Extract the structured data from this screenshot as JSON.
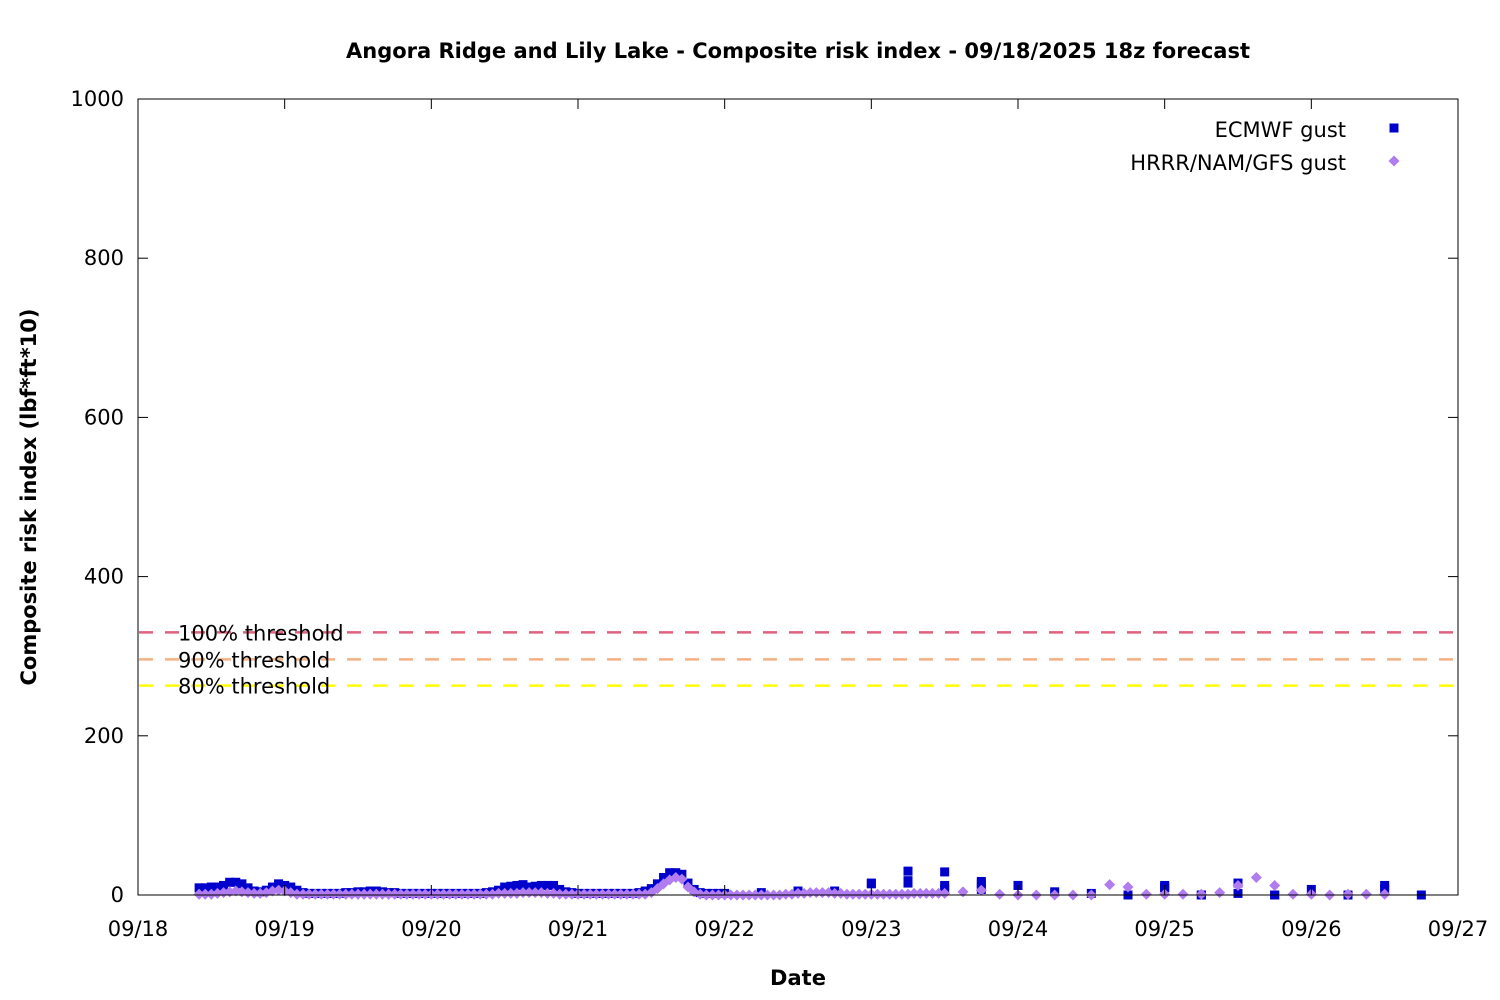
{
  "chart_data": {
    "type": "scatter",
    "title": "Angora Ridge and Lily Lake - Composite risk index - 09/18/2025 18z forecast",
    "xlabel": "Date",
    "ylabel": "Composite risk index (lbf*ft*10)",
    "x_ticks": [
      "09/18",
      "09/19",
      "09/20",
      "09/21",
      "09/22",
      "09/23",
      "09/24",
      "09/25",
      "09/26",
      "09/27"
    ],
    "xlim": [
      "09/18",
      "09/27"
    ],
    "y_ticks": [
      0,
      200,
      400,
      600,
      800,
      1000
    ],
    "ylim": [
      0,
      1000
    ],
    "grid": false,
    "legend": "top-right",
    "thresholds": [
      {
        "label": "100% threshold",
        "value": 330,
        "color": "#e0607e"
      },
      {
        "label": "90% threshold",
        "value": 296,
        "color": "#f4b183"
      },
      {
        "label": "80% threshold",
        "value": 263,
        "color": "#ffff00"
      }
    ],
    "series": [
      {
        "name": "ECMWF gust",
        "marker": "square",
        "color": "#0000cc",
        "points": [
          [
            "09/18 10:00",
            9
          ],
          [
            "09/18 11:00",
            9
          ],
          [
            "09/18 12:00",
            10
          ],
          [
            "09/18 13:00",
            10
          ],
          [
            "09/18 14:00",
            12
          ],
          [
            "09/18 15:00",
            16
          ],
          [
            "09/18 16:00",
            16
          ],
          [
            "09/18 17:00",
            14
          ],
          [
            "09/18 18:00",
            9
          ],
          [
            "09/18 19:00",
            5
          ],
          [
            "09/18 20:00",
            4
          ],
          [
            "09/18 21:00",
            6
          ],
          [
            "09/18 22:00",
            10
          ],
          [
            "09/18 23:00",
            14
          ],
          [
            "09/19 00:00",
            12
          ],
          [
            "09/19 01:00",
            10
          ],
          [
            "09/19 02:00",
            6
          ],
          [
            "09/19 03:00",
            3
          ],
          [
            "09/19 04:00",
            2
          ],
          [
            "09/19 05:00",
            2
          ],
          [
            "09/19 06:00",
            2
          ],
          [
            "09/19 07:00",
            2
          ],
          [
            "09/19 08:00",
            2
          ],
          [
            "09/19 09:00",
            2
          ],
          [
            "09/19 10:00",
            3
          ],
          [
            "09/19 11:00",
            3
          ],
          [
            "09/19 12:00",
            4
          ],
          [
            "09/19 13:00",
            4
          ],
          [
            "09/19 14:00",
            5
          ],
          [
            "09/19 15:00",
            5
          ],
          [
            "09/19 16:00",
            4
          ],
          [
            "09/19 17:00",
            3
          ],
          [
            "09/19 18:00",
            3
          ],
          [
            "09/19 19:00",
            2
          ],
          [
            "09/19 20:00",
            2
          ],
          [
            "09/19 21:00",
            2
          ],
          [
            "09/19 22:00",
            2
          ],
          [
            "09/19 23:00",
            2
          ],
          [
            "09/20 00:00",
            2
          ],
          [
            "09/20 01:00",
            2
          ],
          [
            "09/20 02:00",
            2
          ],
          [
            "09/20 03:00",
            2
          ],
          [
            "09/20 04:00",
            2
          ],
          [
            "09/20 05:00",
            2
          ],
          [
            "09/20 06:00",
            2
          ],
          [
            "09/20 07:00",
            2
          ],
          [
            "09/20 08:00",
            2
          ],
          [
            "09/20 09:00",
            3
          ],
          [
            "09/20 10:00",
            4
          ],
          [
            "09/20 11:00",
            6
          ],
          [
            "09/20 12:00",
            10
          ],
          [
            "09/20 13:00",
            11
          ],
          [
            "09/20 14:00",
            12
          ],
          [
            "09/20 15:00",
            13
          ],
          [
            "09/20 16:00",
            10
          ],
          [
            "09/20 17:00",
            11
          ],
          [
            "09/20 18:00",
            12
          ],
          [
            "09/20 19:00",
            12
          ],
          [
            "09/20 20:00",
            12
          ],
          [
            "09/20 21:00",
            7
          ],
          [
            "09/20 22:00",
            4
          ],
          [
            "09/20 23:00",
            3
          ],
          [
            "09/21 00:00",
            2
          ],
          [
            "09/21 01:00",
            2
          ],
          [
            "09/21 02:00",
            2
          ],
          [
            "09/21 03:00",
            2
          ],
          [
            "09/21 04:00",
            2
          ],
          [
            "09/21 05:00",
            2
          ],
          [
            "09/21 06:00",
            2
          ],
          [
            "09/21 07:00",
            2
          ],
          [
            "09/21 08:00",
            2
          ],
          [
            "09/21 09:00",
            2
          ],
          [
            "09/21 10:00",
            3
          ],
          [
            "09/21 11:00",
            5
          ],
          [
            "09/21 12:00",
            8
          ],
          [
            "09/21 13:00",
            14
          ],
          [
            "09/21 14:00",
            22
          ],
          [
            "09/21 15:00",
            28
          ],
          [
            "09/21 16:00",
            28
          ],
          [
            "09/21 17:00",
            26
          ],
          [
            "09/21 18:00",
            15
          ],
          [
            "09/21 19:00",
            7
          ],
          [
            "09/21 20:00",
            3
          ],
          [
            "09/21 21:00",
            2
          ],
          [
            "09/21 22:00",
            2
          ],
          [
            "09/21 23:00",
            2
          ],
          [
            "09/22 00:00",
            2
          ],
          [
            "09/22 06:00",
            3
          ],
          [
            "09/22 12:00",
            5
          ],
          [
            "09/22 18:00",
            5
          ],
          [
            "09/23 00:00",
            14
          ],
          [
            "09/23 06:00",
            30
          ],
          [
            "09/23 12:00",
            29
          ],
          [
            "09/23 18:00",
            17
          ],
          [
            "09/24 00:00",
            12
          ],
          [
            "09/23 06:00",
            15
          ],
          [
            "09/23 12:00",
            8
          ],
          [
            "09/23 18:00",
            7
          ],
          [
            "09/23 00:00",
            15
          ],
          [
            "09/23 06:00",
            18
          ],
          [
            "09/23 12:00",
            12
          ],
          [
            "09/23 18:00",
            14
          ],
          [
            "09/24 00:00",
            12
          ],
          [
            "09/24 06:00",
            4
          ],
          [
            "09/24 12:00",
            2
          ],
          [
            "09/24 18:00",
            0
          ],
          [
            "09/25 00:00",
            10
          ],
          [
            "09/25 06:00",
            0
          ],
          [
            "09/25 12:00",
            15
          ],
          [
            "09/25 18:00",
            0
          ],
          [
            "09/25 00:00",
            9
          ],
          [
            "09/25 06:00",
            0
          ],
          [
            "09/25 12:00",
            2
          ],
          [
            "09/25 18:00",
            0
          ],
          [
            "09/25 00:00",
            12
          ],
          [
            "09/26 06:00",
            0
          ],
          [
            "09/26 12:00",
            12
          ],
          [
            "09/26 18:00",
            0
          ],
          [
            "09/26 00:00",
            7
          ],
          [
            "09/26 06:00",
            0
          ],
          [
            "09/26 12:00",
            8
          ]
        ]
      },
      {
        "name": "HRRR/NAM/GFS gust",
        "marker": "diamond",
        "color": "#b07cf0",
        "points": [
          [
            "09/18 10:00",
            1
          ],
          [
            "09/18 11:00",
            1
          ],
          [
            "09/18 12:00",
            1
          ],
          [
            "09/18 13:00",
            2
          ],
          [
            "09/18 14:00",
            3
          ],
          [
            "09/18 15:00",
            4
          ],
          [
            "09/18 16:00",
            5
          ],
          [
            "09/18 17:00",
            4
          ],
          [
            "09/18 18:00",
            3
          ],
          [
            "09/18 19:00",
            2
          ],
          [
            "09/18 20:00",
            2
          ],
          [
            "09/18 21:00",
            3
          ],
          [
            "09/18 22:00",
            5
          ],
          [
            "09/18 23:00",
            6
          ],
          [
            "09/19 00:00",
            5
          ],
          [
            "09/19 01:00",
            3
          ],
          [
            "09/19 02:00",
            1
          ],
          [
            "09/19 03:00",
            1
          ],
          [
            "09/19 04:00",
            1
          ],
          [
            "09/19 05:00",
            1
          ],
          [
            "09/19 06:00",
            1
          ],
          [
            "09/19 07:00",
            1
          ],
          [
            "09/19 08:00",
            1
          ],
          [
            "09/19 09:00",
            1
          ],
          [
            "09/19 10:00",
            1
          ],
          [
            "09/19 11:00",
            1
          ],
          [
            "09/19 12:00",
            1
          ],
          [
            "09/19 13:00",
            1
          ],
          [
            "09/19 14:00",
            1
          ],
          [
            "09/19 15:00",
            1
          ],
          [
            "09/19 16:00",
            1
          ],
          [
            "09/19 17:00",
            1
          ],
          [
            "09/19 18:00",
            1
          ],
          [
            "09/19 19:00",
            1
          ],
          [
            "09/19 20:00",
            1
          ],
          [
            "09/19 21:00",
            1
          ],
          [
            "09/19 22:00",
            1
          ],
          [
            "09/19 23:00",
            1
          ],
          [
            "09/20 00:00",
            1
          ],
          [
            "09/20 01:00",
            1
          ],
          [
            "09/20 02:00",
            1
          ],
          [
            "09/20 03:00",
            1
          ],
          [
            "09/20 04:00",
            1
          ],
          [
            "09/20 05:00",
            1
          ],
          [
            "09/20 06:00",
            1
          ],
          [
            "09/20 07:00",
            1
          ],
          [
            "09/20 08:00",
            1
          ],
          [
            "09/20 09:00",
            1
          ],
          [
            "09/20 10:00",
            1
          ],
          [
            "09/20 11:00",
            2
          ],
          [
            "09/20 12:00",
            2
          ],
          [
            "09/20 13:00",
            2
          ],
          [
            "09/20 14:00",
            2
          ],
          [
            "09/20 15:00",
            3
          ],
          [
            "09/20 16:00",
            3
          ],
          [
            "09/20 17:00",
            3
          ],
          [
            "09/20 18:00",
            3
          ],
          [
            "09/20 19:00",
            2
          ],
          [
            "09/20 20:00",
            2
          ],
          [
            "09/20 21:00",
            1
          ],
          [
            "09/20 22:00",
            1
          ],
          [
            "09/20 23:00",
            1
          ],
          [
            "09/21 00:00",
            1
          ],
          [
            "09/21 01:00",
            1
          ],
          [
            "09/21 02:00",
            1
          ],
          [
            "09/21 03:00",
            1
          ],
          [
            "09/21 04:00",
            1
          ],
          [
            "09/21 05:00",
            1
          ],
          [
            "09/21 06:00",
            1
          ],
          [
            "09/21 07:00",
            1
          ],
          [
            "09/21 08:00",
            1
          ],
          [
            "09/21 09:00",
            1
          ],
          [
            "09/21 10:00",
            1
          ],
          [
            "09/21 11:00",
            1
          ],
          [
            "09/21 12:00",
            3
          ],
          [
            "09/21 13:00",
            8
          ],
          [
            "09/21 14:00",
            14
          ],
          [
            "09/21 15:00",
            19
          ],
          [
            "09/21 16:00",
            22
          ],
          [
            "09/21 17:00",
            20
          ],
          [
            "09/21 18:00",
            10
          ],
          [
            "09/21 19:00",
            4
          ],
          [
            "09/21 20:00",
            1
          ],
          [
            "09/21 21:00",
            0
          ],
          [
            "09/21 22:00",
            0
          ],
          [
            "09/21 23:00",
            0
          ],
          [
            "09/22 00:00",
            0
          ],
          [
            "09/22 01:00",
            0
          ],
          [
            "09/22 02:00",
            0
          ],
          [
            "09/22 03:00",
            0
          ],
          [
            "09/22 04:00",
            0
          ],
          [
            "09/22 05:00",
            0
          ],
          [
            "09/22 06:00",
            0
          ],
          [
            "09/22 07:00",
            0
          ],
          [
            "09/22 08:00",
            0
          ],
          [
            "09/22 09:00",
            0
          ],
          [
            "09/22 10:00",
            1
          ],
          [
            "09/22 11:00",
            1
          ],
          [
            "09/22 12:00",
            2
          ],
          [
            "09/22 13:00",
            2
          ],
          [
            "09/22 14:00",
            3
          ],
          [
            "09/22 15:00",
            3
          ],
          [
            "09/22 16:00",
            3
          ],
          [
            "09/22 17:00",
            3
          ],
          [
            "09/22 18:00",
            2
          ],
          [
            "09/22 19:00",
            2
          ],
          [
            "09/22 20:00",
            1
          ],
          [
            "09/22 21:00",
            1
          ],
          [
            "09/22 22:00",
            1
          ],
          [
            "09/22 23:00",
            1
          ],
          [
            "09/23 00:00",
            1
          ],
          [
            "09/23 01:00",
            1
          ],
          [
            "09/23 02:00",
            1
          ],
          [
            "09/23 03:00",
            1
          ],
          [
            "09/23 04:00",
            1
          ],
          [
            "09/23 05:00",
            1
          ],
          [
            "09/23 06:00",
            1
          ],
          [
            "09/23 07:00",
            2
          ],
          [
            "09/23 08:00",
            2
          ],
          [
            "09/23 09:00",
            2
          ],
          [
            "09/23 10:00",
            2
          ],
          [
            "09/23 11:00",
            2
          ],
          [
            "09/23 12:00",
            2
          ],
          [
            "09/23 15:00",
            4
          ],
          [
            "09/23 18:00",
            6
          ],
          [
            "09/23 21:00",
            1
          ],
          [
            "09/24 00:00",
            0
          ],
          [
            "09/24 03:00",
            0
          ],
          [
            "09/24 06:00",
            0
          ],
          [
            "09/24 09:00",
            0
          ],
          [
            "09/24 12:00",
            0
          ],
          [
            "09/24 15:00",
            13
          ],
          [
            "09/24 18:00",
            10
          ],
          [
            "09/24 21:00",
            1
          ],
          [
            "09/25 00:00",
            1
          ],
          [
            "09/25 03:00",
            1
          ],
          [
            "09/25 06:00",
            1
          ],
          [
            "09/25 09:00",
            3
          ],
          [
            "09/25 12:00",
            12
          ],
          [
            "09/25 15:00",
            22
          ],
          [
            "09/25 18:00",
            12
          ],
          [
            "09/25 21:00",
            1
          ],
          [
            "09/26 00:00",
            1
          ],
          [
            "09/26 03:00",
            0
          ],
          [
            "09/26 06:00",
            1
          ],
          [
            "09/26 09:00",
            1
          ],
          [
            "09/26 12:00",
            1
          ]
        ]
      }
    ]
  }
}
